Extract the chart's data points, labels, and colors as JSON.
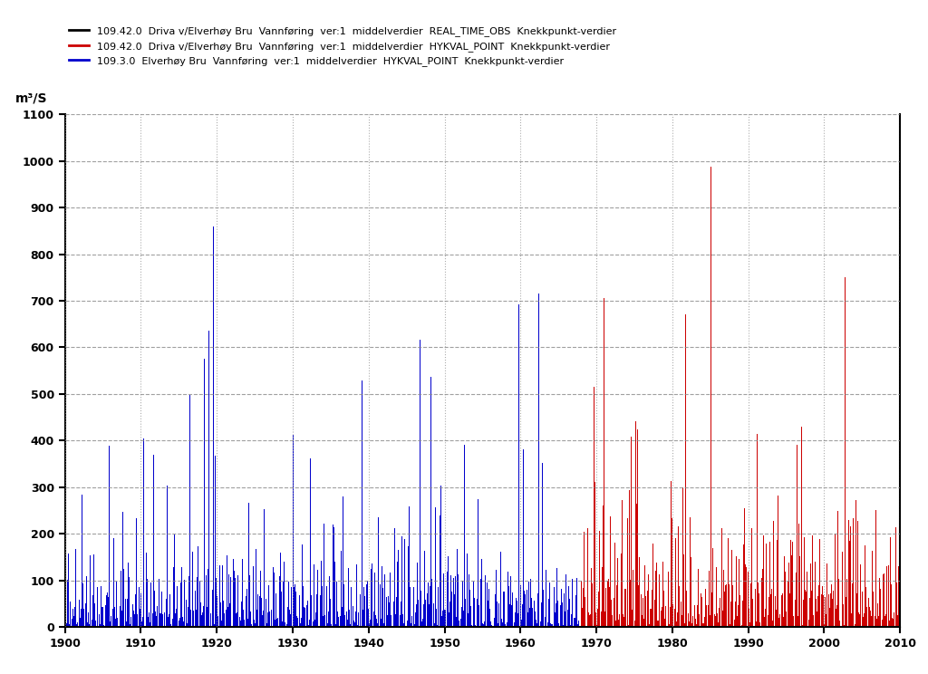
{
  "legend": [
    {
      "label": "109.42.0  Driva v/Elverhøy Bru  Vannføring  ver:1  middelverdier  REAL_TIME_OBS  Knekkpunkt-verdier",
      "color": "#000000"
    },
    {
      "label": "109.42.0  Driva v/Elverhøy Bru  Vannføring  ver:1  middelverdier  HYKVAL_POINT  Knekkpunkt-verdier",
      "color": "#cc0000"
    },
    {
      "label": "109.3.0  Elverhøy Bru  Vannføring  ver:1  middelverdier  HYKVAL_POINT  Knekkpunkt-verdier",
      "color": "#0000cc"
    }
  ],
  "ylabel": "m³/S",
  "ylim": [
    0,
    1100
  ],
  "xlim": [
    1900,
    2010
  ],
  "yticks": [
    0,
    100,
    200,
    300,
    400,
    500,
    600,
    700,
    800,
    900,
    1000,
    1100
  ],
  "xticks": [
    1900,
    1910,
    1920,
    1930,
    1940,
    1950,
    1960,
    1970,
    1980,
    1990,
    2000,
    2010
  ],
  "blue_color": "#0000cc",
  "red_color": "#cc0000",
  "background_color": "#ffffff",
  "grid_color_dotted": "#999999",
  "grid_color_dashed": "#888888",
  "blue_period_start": 1900,
  "blue_period_end": 1968,
  "red_period_start": 1968,
  "red_period_end": 2010,
  "points_per_year": 24,
  "seed": 42
}
